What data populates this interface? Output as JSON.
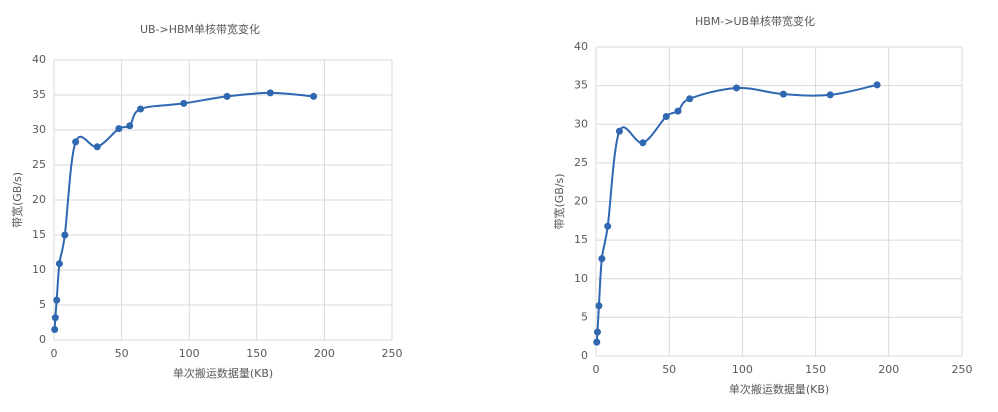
{
  "chart_data": [
    {
      "type": "line",
      "title": "UB->HBM单核带宽变化",
      "x_label": "单次搬运数据量(KB)",
      "y_label": "带宽(GB/s)",
      "x": [
        0.5,
        1,
        2,
        4,
        8,
        16,
        32,
        48,
        56,
        64,
        96,
        128,
        160,
        192
      ],
      "series": [
        {
          "color": "#2f67b1",
          "values": [
            1.5,
            3.2,
            5.7,
            10.9,
            15,
            28.3,
            27.6,
            30.2,
            30.6,
            33,
            33.8,
            34.8,
            35.3,
            34.8
          ]
        }
      ],
      "xlim": [
        0,
        250
      ],
      "xticks": [
        0,
        50,
        100,
        150,
        200,
        250
      ],
      "ylim": [
        0,
        40
      ],
      "yticks": [
        0,
        5,
        10,
        15,
        20,
        25,
        30,
        35,
        40
      ],
      "grid": true,
      "smooth": true
    },
    {
      "type": "line",
      "title": "HBM->UB单核带宽变化",
      "x_label": "单次搬运数据量(KB)",
      "y_label": "带宽(GB/s)",
      "x": [
        0.5,
        1,
        2,
        4,
        8,
        16,
        32,
        48,
        56,
        64,
        96,
        128,
        160,
        192
      ],
      "series": [
        {
          "color": "#2f67b1",
          "values": [
            1.8,
            3.1,
            6.5,
            12.6,
            16.8,
            29.1,
            27.6,
            31,
            31.7,
            33.3,
            34.7,
            33.9,
            33.8,
            35.1
          ]
        }
      ],
      "xlim": [
        0,
        250
      ],
      "xticks": [
        0,
        50,
        100,
        150,
        200,
        250
      ],
      "ylim": [
        0,
        40
      ],
      "yticks": [
        0,
        5,
        10,
        15,
        20,
        25,
        30,
        35,
        40
      ],
      "grid": true,
      "smooth": true
    }
  ]
}
